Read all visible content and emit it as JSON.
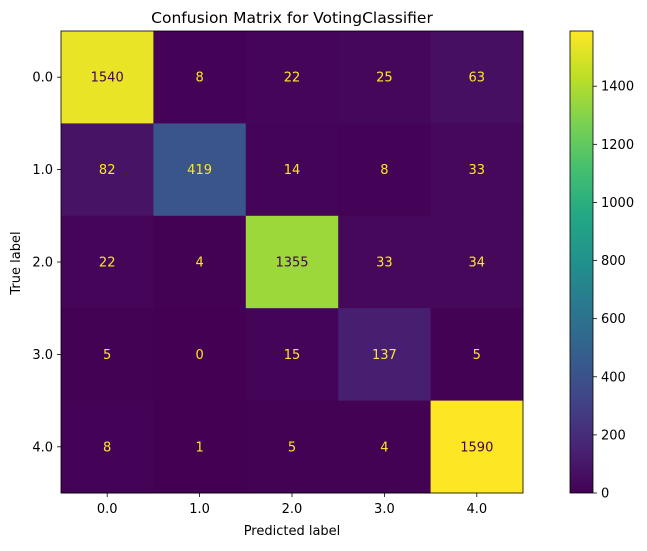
{
  "chart_data": {
    "type": "heatmap",
    "title": "Confusion Matrix for VotingClassifier",
    "xlabel": "Predicted label",
    "ylabel": "True label",
    "x_categories": [
      "0.0",
      "1.0",
      "2.0",
      "3.0",
      "4.0"
    ],
    "y_categories": [
      "0.0",
      "1.0",
      "2.0",
      "3.0",
      "4.0"
    ],
    "values": [
      [
        1540,
        8,
        22,
        25,
        63
      ],
      [
        82,
        419,
        14,
        8,
        33
      ],
      [
        22,
        4,
        1355,
        33,
        34
      ],
      [
        5,
        0,
        15,
        137,
        5
      ],
      [
        8,
        1,
        5,
        4,
        1590
      ]
    ],
    "colormap": "viridis",
    "color_range": [
      0,
      1590
    ],
    "colorbar_ticks": [
      0,
      200,
      400,
      600,
      800,
      1000,
      1200,
      1400
    ],
    "label_colors": {
      "on_dark": "#fde725",
      "on_light": "#440154"
    },
    "grid": false
  }
}
